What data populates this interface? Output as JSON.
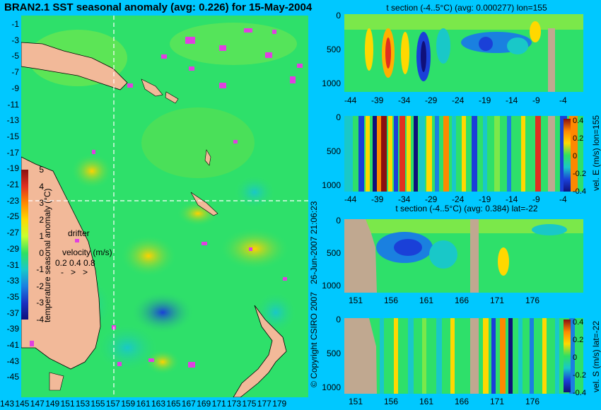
{
  "map": {
    "title": "BRAN2.1 SST seasonal anomaly (avg: 0.226) for 15-May-2004",
    "lat_ticks": [
      "-1",
      "-3",
      "-5",
      "-7",
      "-9",
      "-11",
      "-13",
      "-15",
      "-17",
      "-19",
      "-21",
      "-23",
      "-25",
      "-27",
      "-29",
      "-31",
      "-33",
      "-35",
      "-37",
      "-39",
      "-41",
      "-43",
      "-45"
    ],
    "lon_ticks": [
      "143",
      "145",
      "147",
      "149",
      "151",
      "153",
      "155",
      "157",
      "159",
      "161",
      "163",
      "165",
      "167",
      "169",
      "171",
      "173",
      "175",
      "177",
      "179"
    ],
    "colorbar_label": "temperature seasonal anomaly (°C)",
    "colorbar_ticks": [
      "5",
      "4",
      "3",
      "2",
      "1",
      "0",
      "-1",
      "-2",
      "-3",
      "-4"
    ],
    "drifter_label": "drifter",
    "velocity_label": "velocity (m/s)",
    "velocity_values": "0.2 0.4 0.8",
    "section_line_lon": "155",
    "section_line_lat": "-22"
  },
  "panels": [
    {
      "title": "t section (-4..5°C) (avg: 0.000277) lon=155",
      "y_ticks": [
        "0",
        "500",
        "1000"
      ],
      "x_ticks": [
        "-44",
        "-39",
        "-34",
        "-29",
        "-24",
        "-19",
        "-14",
        "-9",
        "-4"
      ],
      "side_label": ""
    },
    {
      "title": "",
      "y_ticks": [
        "0",
        "500",
        "1000"
      ],
      "x_ticks": [
        "-44",
        "-39",
        "-34",
        "-29",
        "-24",
        "-19",
        "-14",
        "-9",
        "-4"
      ],
      "side_label": "vel. E (m/s) lon=155",
      "cbar_ticks": [
        "0.4",
        "0.2",
        "0",
        "-0.2",
        "-0.4"
      ]
    },
    {
      "title": "t section (-4..5°C) (avg: 0.384) lat=-22",
      "y_ticks": [
        "0",
        "500",
        "1000"
      ],
      "x_ticks": [
        "151",
        "156",
        "161",
        "166",
        "171",
        "176"
      ],
      "side_label": ""
    },
    {
      "title": "",
      "y_ticks": [
        "0",
        "500",
        "1000"
      ],
      "x_ticks": [
        "151",
        "156",
        "161",
        "166",
        "171",
        "176"
      ],
      "side_label": "vel. S (m/s) lat=-22",
      "cbar_ticks": [
        "0.4",
        "0.2",
        "0",
        "-0.2",
        "-0.4"
      ]
    }
  ],
  "footer": {
    "copyright": "© Copyright CSIRO 2007",
    "timestamp": "26-Jun-2007 21:06:23"
  },
  "colors": {
    "background": "#00c8ff",
    "ocean": "#2ee06a",
    "land": "#f2b999",
    "drifter": "#e040e0",
    "mask": "#c0a890"
  }
}
